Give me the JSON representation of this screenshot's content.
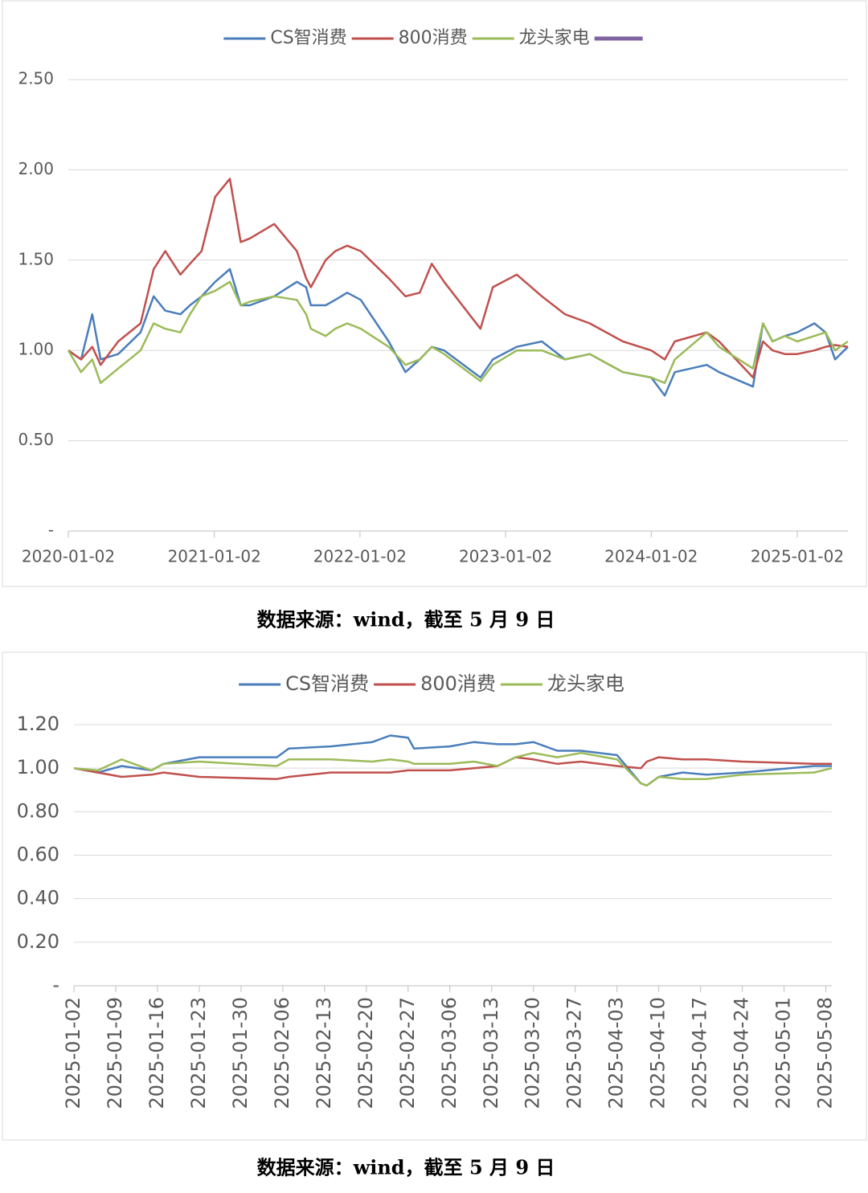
{
  "chart_data": [
    {
      "type": "line",
      "x": [
        "2020-01-02",
        "2020-02-03",
        "2020-03-02",
        "2020-03-23",
        "2020-05-06",
        "2020-07-01",
        "2020-08-03",
        "2020-09-01",
        "2020-10-09",
        "2020-11-02",
        "2020-12-01",
        "2021-01-04",
        "2021-02-10",
        "2021-03-09",
        "2021-04-01",
        "2021-06-01",
        "2021-07-28",
        "2021-08-20",
        "2021-09-01",
        "2021-10-08",
        "2021-11-01",
        "2021-12-01",
        "2022-01-04",
        "2022-03-15",
        "2022-04-26",
        "2022-06-01",
        "2022-07-01",
        "2022-08-01",
        "2022-10-31",
        "2022-12-01",
        "2023-01-30",
        "2023-04-03",
        "2023-05-31",
        "2023-08-01",
        "2023-10-23",
        "2024-01-02",
        "2024-02-05",
        "2024-03-01",
        "2024-05-20",
        "2024-06-20",
        "2024-09-13",
        "2024-10-08",
        "2024-11-01",
        "2024-12-02",
        "2025-01-02",
        "2025-02-14",
        "2025-03-14",
        "2025-04-07",
        "2025-05-09"
      ],
      "series": [
        {
          "name": "CS智消费",
          "color": "#4a7ebb",
          "values": [
            1.0,
            0.95,
            1.2,
            0.95,
            0.98,
            1.1,
            1.3,
            1.22,
            1.2,
            1.25,
            1.3,
            1.38,
            1.45,
            1.25,
            1.25,
            1.3,
            1.38,
            1.35,
            1.25,
            1.25,
            1.28,
            1.32,
            1.28,
            1.05,
            0.88,
            0.95,
            1.02,
            1.0,
            0.85,
            0.95,
            1.02,
            1.05,
            0.95,
            0.98,
            0.88,
            0.85,
            0.75,
            0.88,
            0.92,
            0.88,
            0.8,
            1.15,
            1.05,
            1.08,
            1.1,
            1.15,
            1.1,
            0.95,
            1.02
          ]
        },
        {
          "name": "800消费",
          "color": "#c0504d",
          "values": [
            1.0,
            0.95,
            1.02,
            0.92,
            1.05,
            1.15,
            1.45,
            1.55,
            1.42,
            1.48,
            1.55,
            1.85,
            1.95,
            1.6,
            1.62,
            1.7,
            1.55,
            1.4,
            1.35,
            1.5,
            1.55,
            1.58,
            1.55,
            1.4,
            1.3,
            1.32,
            1.48,
            1.38,
            1.12,
            1.35,
            1.42,
            1.3,
            1.2,
            1.15,
            1.05,
            1.0,
            0.95,
            1.05,
            1.1,
            1.05,
            0.85,
            1.05,
            1.0,
            0.98,
            0.98,
            1.0,
            1.02,
            1.03,
            1.02
          ]
        },
        {
          "name": "龙头家电",
          "color": "#9bbb59",
          "values": [
            1.0,
            0.88,
            0.95,
            0.82,
            0.9,
            1.0,
            1.15,
            1.12,
            1.1,
            1.2,
            1.3,
            1.33,
            1.38,
            1.25,
            1.27,
            1.3,
            1.28,
            1.2,
            1.12,
            1.08,
            1.12,
            1.15,
            1.12,
            1.02,
            0.92,
            0.95,
            1.02,
            0.98,
            0.83,
            0.92,
            1.0,
            1.0,
            0.95,
            0.98,
            0.88,
            0.85,
            0.82,
            0.95,
            1.1,
            1.02,
            0.9,
            1.15,
            1.05,
            1.08,
            1.05,
            1.08,
            1.1,
            1.0,
            1.05
          ]
        }
      ],
      "xlim": [
        "2020-01-02",
        "2025-05-09"
      ],
      "xticks": [
        "2020-01-02",
        "2021-01-02",
        "2022-01-02",
        "2023-01-02",
        "2024-01-02",
        "2025-01-02"
      ],
      "ylim": [
        0,
        2.5
      ],
      "yticks": [
        {
          "value": 0,
          "label": "-"
        },
        {
          "value": 0.5,
          "label": "0.50"
        },
        {
          "value": 1,
          "label": "1.00"
        },
        {
          "value": 1.5,
          "label": "1.50"
        },
        {
          "value": 2,
          "label": "2.00"
        },
        {
          "value": 2.5,
          "label": "2.50"
        }
      ],
      "grid": true,
      "source": "数据来源：wind，截至 5 月 9 日"
    },
    {
      "type": "line",
      "x": [
        "2025-01-02",
        "2025-01-06",
        "2025-01-10",
        "2025-01-15",
        "2025-01-17",
        "2025-01-23",
        "2025-02-05",
        "2025-02-07",
        "2025-02-14",
        "2025-02-21",
        "2025-02-24",
        "2025-02-27",
        "2025-02-28",
        "2025-03-06",
        "2025-03-10",
        "2025-03-14",
        "2025-03-17",
        "2025-03-20",
        "2025-03-24",
        "2025-03-28",
        "2025-04-03",
        "2025-04-07",
        "2025-04-08",
        "2025-04-10",
        "2025-04-14",
        "2025-04-18",
        "2025-04-24",
        "2025-05-06",
        "2025-05-09"
      ],
      "series": [
        {
          "name": "CS智消费",
          "color": "#4a7ebb",
          "values": [
            1.0,
            0.98,
            1.01,
            0.99,
            1.02,
            1.05,
            1.05,
            1.09,
            1.1,
            1.12,
            1.15,
            1.14,
            1.09,
            1.1,
            1.12,
            1.11,
            1.11,
            1.12,
            1.08,
            1.08,
            1.06,
            0.93,
            0.92,
            0.96,
            0.98,
            0.97,
            0.98,
            1.01,
            1.01
          ]
        },
        {
          "name": "800消费",
          "color": "#c0504d",
          "values": [
            1.0,
            0.98,
            0.96,
            0.97,
            0.98,
            0.96,
            0.95,
            0.96,
            0.98,
            0.98,
            0.98,
            0.99,
            0.99,
            0.99,
            1.0,
            1.01,
            1.05,
            1.04,
            1.02,
            1.03,
            1.01,
            1.0,
            1.03,
            1.05,
            1.04,
            1.04,
            1.03,
            1.02,
            1.02
          ]
        },
        {
          "name": "龙头家电",
          "color": "#9bbb59",
          "values": [
            1.0,
            0.99,
            1.04,
            0.99,
            1.02,
            1.03,
            1.01,
            1.04,
            1.04,
            1.03,
            1.04,
            1.03,
            1.02,
            1.02,
            1.03,
            1.01,
            1.05,
            1.07,
            1.05,
            1.07,
            1.04,
            0.93,
            0.92,
            0.96,
            0.95,
            0.95,
            0.97,
            0.98,
            1.0
          ]
        }
      ],
      "xlim": [
        "2025-01-02",
        "2025-05-09"
      ],
      "xticks": [
        "2025-01-02",
        "2025-01-09",
        "2025-01-16",
        "2025-01-23",
        "2025-01-30",
        "2025-02-06",
        "2025-02-13",
        "2025-02-20",
        "2025-02-27",
        "2025-03-06",
        "2025-03-13",
        "2025-03-20",
        "2025-03-27",
        "2025-04-03",
        "2025-04-10",
        "2025-04-17",
        "2025-04-24",
        "2025-05-01",
        "2025-05-08"
      ],
      "ylim": [
        0,
        1.2
      ],
      "yticks": [
        {
          "value": 0,
          "label": "-"
        },
        {
          "value": 0.2,
          "label": "0.20"
        },
        {
          "value": 0.4,
          "label": "0.40"
        },
        {
          "value": 0.6,
          "label": "0.60"
        },
        {
          "value": 0.8,
          "label": "0.80"
        },
        {
          "value": 1,
          "label": "1.00"
        },
        {
          "value": 1.2,
          "label": "1.20"
        }
      ],
      "grid": true,
      "source": "数据来源：wind，截至 5 月 9 日"
    }
  ]
}
